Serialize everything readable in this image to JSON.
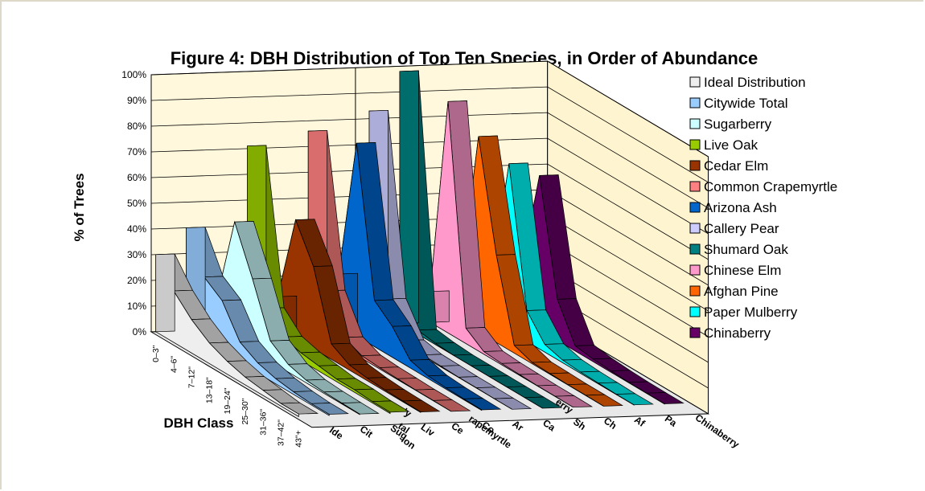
{
  "chart_data": {
    "type": "area",
    "title": "Figure 4: DBH Distribution of Top Ten Species, in Order of Abundance",
    "xlabel": "DBH Class",
    "ylabel": "% of Trees",
    "ylim": [
      0,
      100
    ],
    "yticks": [
      "0%",
      "10%",
      "20%",
      "30%",
      "40%",
      "50%",
      "60%",
      "70%",
      "80%",
      "90%",
      "100%"
    ],
    "categories": [
      "0–3\"",
      "4–6\"",
      "7–12\"",
      "13–18\"",
      "19–24\"",
      "25–30\"",
      "31–36\"",
      "37–42\"",
      "43\"+"
    ],
    "series_axis_labels": [
      "Ide",
      "Cit",
      "Sug",
      "Liv",
      "Ce",
      "Co",
      "Ar",
      "Ca",
      "Sh",
      "Ch",
      "Af",
      "Pa",
      "Chinaberry"
    ],
    "series_axis_fragments": [
      "Ideal Distribution",
      "Citywide Total",
      "Sugarberry",
      "Common Crapemyrtle",
      "Paper Mulberry"
    ],
    "grid": true,
    "legend_position": "right",
    "series": [
      {
        "name": "Ideal Distribution",
        "color": "#eeeeee",
        "values": [
          30,
          20,
          13,
          8,
          5,
          3,
          2,
          1,
          1
        ]
      },
      {
        "name": "Citywide Total",
        "color": "#99ccff",
        "values": [
          40,
          25,
          20,
          8,
          4,
          2,
          1,
          0.5,
          0.5
        ]
      },
      {
        "name": "Sugarberry",
        "color": "#ccffff",
        "values": [
          12,
          46,
          28,
          8,
          3,
          1,
          0.5,
          0.3,
          0.2
        ]
      },
      {
        "name": "Live Oak",
        "color": "#99cc00",
        "values": [
          71,
          12,
          5,
          3,
          2,
          1,
          1,
          0.5,
          0.5
        ]
      },
      {
        "name": "Cedar Elm",
        "color": "#993300",
        "values": [
          12,
          46,
          32,
          6,
          2,
          1,
          0.5,
          0.3,
          0.2
        ]
      },
      {
        "name": "Common Crapemyrtle",
        "color": "#ff8080",
        "values": [
          76,
          18,
          4,
          1,
          0.5,
          0.3,
          0.1,
          0.1,
          0
        ]
      },
      {
        "name": "Arizona Ash",
        "color": "#0066cc",
        "values": [
          20,
          75,
          18,
          12,
          3,
          1,
          0.5,
          0.3,
          0.2
        ]
      },
      {
        "name": "Callery Pear",
        "color": "#ccccff",
        "values": [
          83,
          14,
          2,
          0.5,
          0.3,
          0.1,
          0.1,
          0,
          0
        ]
      },
      {
        "name": "Shumard Oak",
        "color": "#008080",
        "values": [
          98,
          1.5,
          0.5,
          0,
          0,
          0,
          0,
          0,
          0
        ]
      },
      {
        "name": "Chinese Elm",
        "color": "#ff99cc",
        "values": [
          12,
          90,
          6,
          1,
          0.5,
          0.3,
          0.1,
          0.1,
          0
        ]
      },
      {
        "name": "Afghan Pine",
        "color": "#ff6600",
        "values": [
          16,
          76,
          34,
          3,
          0.5,
          0.3,
          0.1,
          0.1,
          0
        ]
      },
      {
        "name": "Paper Mulberry",
        "color": "#00ffff",
        "values": [
          15,
          65,
          12,
          3,
          1,
          0.5,
          0.3,
          0.1,
          0.1
        ]
      },
      {
        "name": "Chinaberry",
        "color": "#660066",
        "values": [
          20,
          60,
          16,
          2,
          1,
          0.5,
          0.2,
          0.1,
          0.1
        ]
      }
    ]
  }
}
